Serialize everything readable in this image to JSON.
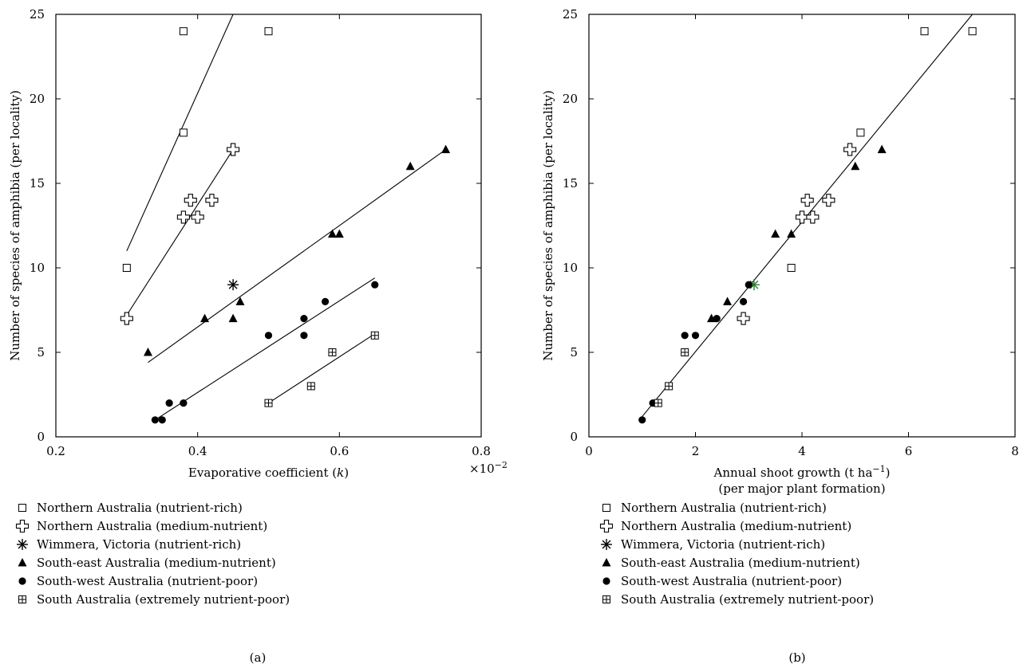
{
  "legend_items": [
    {
      "key": "nr",
      "label": "Northern Australia (nutrient-rich)",
      "marker": "open-square"
    },
    {
      "key": "nm",
      "label": "Northern Australia (medium-nutrient)",
      "marker": "open-cross"
    },
    {
      "key": "wv",
      "label": "Wimmera, Victoria (nutrient-rich)",
      "marker": "asterisk"
    },
    {
      "key": "se",
      "label": "South-east Australia (medium-nutrient)",
      "marker": "filled-triangle"
    },
    {
      "key": "sw",
      "label": "South-west Australia (nutrient-poor)",
      "marker": "filled-circle"
    },
    {
      "key": "sa",
      "label": "South Australia (extremely nutrient-poor)",
      "marker": "boxed-plus"
    }
  ],
  "chart_data": [
    {
      "type": "scatter",
      "panel_label": "(a)",
      "xlabel": "Evaporative coefficient (k)",
      "xlabel_parts": {
        "before": "Evaporative coefficient (",
        "italic": "k",
        "after": ")"
      },
      "x_multiplier": "×10",
      "x_multiplier_exp": "−2",
      "ylabel": "Number of species of amphibia (per locality)",
      "xlim": [
        0.2,
        0.8
      ],
      "ylim": [
        0,
        25
      ],
      "xticks": [
        0.2,
        0.4,
        0.6,
        0.8
      ],
      "xtick_labels": [
        "0.2",
        "0.4",
        "0.6",
        "0.8"
      ],
      "yticks": [
        0,
        5,
        10,
        15,
        20,
        25
      ],
      "ytick_labels": [
        "0",
        "5",
        "10",
        "15",
        "20",
        "25"
      ],
      "series": [
        {
          "key": "nr",
          "points": [
            [
              0.3,
              10
            ],
            [
              0.38,
              18
            ],
            [
              0.38,
              24
            ],
            [
              0.5,
              24
            ]
          ],
          "fit": [
            [
              0.3,
              11
            ],
            [
              0.45,
              25
            ]
          ]
        },
        {
          "key": "nm",
          "points": [
            [
              0.3,
              7
            ],
            [
              0.38,
              13
            ],
            [
              0.39,
              14
            ],
            [
              0.4,
              13
            ],
            [
              0.42,
              14
            ],
            [
              0.45,
              17
            ]
          ],
          "fit": [
            [
              0.3,
              7.2
            ],
            [
              0.45,
              17
            ]
          ]
        },
        {
          "key": "wv",
          "points": [
            [
              0.45,
              9
            ]
          ]
        },
        {
          "key": "se",
          "points": [
            [
              0.33,
              5
            ],
            [
              0.41,
              7
            ],
            [
              0.45,
              7
            ],
            [
              0.46,
              8
            ],
            [
              0.59,
              12
            ],
            [
              0.6,
              12
            ],
            [
              0.7,
              16
            ],
            [
              0.75,
              17
            ]
          ],
          "fit": [
            [
              0.33,
              4.4
            ],
            [
              0.75,
              17
            ]
          ]
        },
        {
          "key": "sw",
          "points": [
            [
              0.34,
              1
            ],
            [
              0.35,
              1
            ],
            [
              0.36,
              2
            ],
            [
              0.38,
              2
            ],
            [
              0.5,
              6
            ],
            [
              0.55,
              6
            ],
            [
              0.55,
              7
            ],
            [
              0.58,
              8
            ],
            [
              0.65,
              9
            ]
          ],
          "fit": [
            [
              0.34,
              1
            ],
            [
              0.65,
              9.4
            ]
          ]
        },
        {
          "key": "sa",
          "points": [
            [
              0.5,
              2
            ],
            [
              0.56,
              3
            ],
            [
              0.59,
              5
            ],
            [
              0.65,
              6
            ]
          ],
          "fit": [
            [
              0.5,
              2
            ],
            [
              0.65,
              6.1
            ]
          ]
        }
      ]
    },
    {
      "type": "scatter",
      "panel_label": "(b)",
      "xlabel": "Annual shoot growth (t ha−1)",
      "xlabel_parts": {
        "before": "Annual shoot growth (t ha",
        "sup": "−1",
        "after": ")"
      },
      "xlabel_line2": "(per major plant formation)",
      "ylabel": "Number of species of amphibia (per locality)",
      "xlim": [
        0,
        8
      ],
      "ylim": [
        0,
        25
      ],
      "xticks": [
        0,
        2,
        4,
        6,
        8
      ],
      "xtick_labels": [
        "0",
        "2",
        "4",
        "6",
        "8"
      ],
      "yticks": [
        0,
        5,
        10,
        15,
        20,
        25
      ],
      "ytick_labels": [
        "0",
        "5",
        "10",
        "15",
        "20",
        "25"
      ],
      "series": [
        {
          "key": "nr",
          "points": [
            [
              3.8,
              10
            ],
            [
              5.1,
              18
            ],
            [
              6.3,
              24
            ],
            [
              7.2,
              24
            ]
          ]
        },
        {
          "key": "nm",
          "points": [
            [
              2.9,
              7
            ],
            [
              4.0,
              13
            ],
            [
              4.1,
              14
            ],
            [
              4.2,
              13
            ],
            [
              4.5,
              14
            ],
            [
              4.9,
              17
            ]
          ]
        },
        {
          "key": "wv",
          "points": [
            [
              3.1,
              9
            ]
          ],
          "highlight_color": "#2e7d32"
        },
        {
          "key": "se",
          "points": [
            [
              2.3,
              7
            ],
            [
              2.6,
              8
            ],
            [
              3.5,
              12
            ],
            [
              3.8,
              12
            ],
            [
              5.0,
              16
            ],
            [
              5.5,
              17
            ]
          ]
        },
        {
          "key": "sw",
          "points": [
            [
              1.0,
              1
            ],
            [
              1.2,
              2
            ],
            [
              1.8,
              6
            ],
            [
              2.0,
              6
            ],
            [
              2.4,
              7
            ],
            [
              2.9,
              8
            ],
            [
              3.0,
              9
            ]
          ]
        },
        {
          "key": "sa",
          "points": [
            [
              1.3,
              2
            ],
            [
              1.5,
              3
            ],
            [
              1.8,
              5
            ]
          ]
        }
      ],
      "fit": [
        [
          1.0,
          1.2
        ],
        [
          7.2,
          25
        ]
      ]
    }
  ]
}
